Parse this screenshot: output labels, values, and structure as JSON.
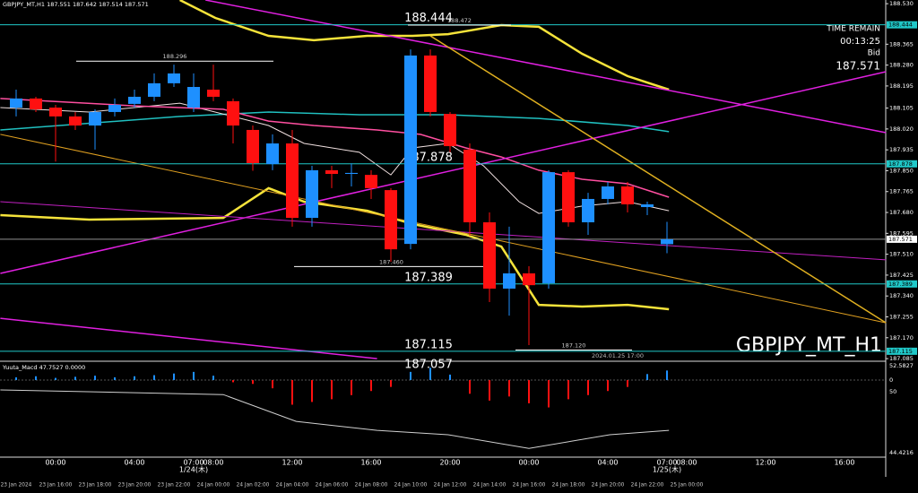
{
  "chart_data": {
    "type": "candlestick",
    "title": "GBPJPY_MT,H1 187.551 187.642 187.514 187.571",
    "watermark": "GBPJPY_MT_H1",
    "info": [
      "TIME REMAIN",
      "00:13:25",
      "Bid",
      "187.571"
    ],
    "footnote": "2024.01.25 17:00",
    "ylim": [
      187.078,
      188.545
    ],
    "yticks": [
      {
        "value": 188.53,
        "label": "188.530"
      },
      {
        "value": 188.365,
        "label": "188.365"
      },
      {
        "value": 188.28,
        "label": "188.280"
      },
      {
        "value": 188.195,
        "label": "188.195"
      },
      {
        "value": 188.105,
        "label": "188.105"
      },
      {
        "value": 188.02,
        "label": "188.020"
      },
      {
        "value": 187.935,
        "label": "187.935"
      },
      {
        "value": 187.85,
        "label": "187.850"
      },
      {
        "value": 187.765,
        "label": "187.765"
      },
      {
        "value": 187.68,
        "label": "187.680"
      },
      {
        "value": 187.595,
        "label": "187.595"
      },
      {
        "value": 187.51,
        "label": "187.510"
      },
      {
        "value": 187.425,
        "label": "187.425"
      },
      {
        "value": 187.34,
        "label": "187.340"
      },
      {
        "value": 187.255,
        "label": "187.255"
      },
      {
        "value": 187.17,
        "label": "187.170"
      },
      {
        "value": 187.085,
        "label": "187.085"
      }
    ],
    "up_color": "#1e90ff",
    "down_color": "#ff1010",
    "candles": {
      "open": [
        188.107,
        188.144,
        188.107,
        188.071,
        188.034,
        188.089,
        188.122,
        188.151,
        188.206,
        188.107,
        188.18,
        188.133,
        188.016,
        187.877,
        187.961,
        187.658,
        187.852,
        187.837,
        187.833,
        187.771,
        187.552,
        188.319,
        188.081,
        187.936,
        187.64,
        187.37,
        187.432,
        187.392,
        187.844,
        187.64,
        187.735,
        187.786,
        187.702,
        187.551
      ],
      "high": [
        188.18,
        188.151,
        188.118,
        188.089,
        188.1,
        188.144,
        188.18,
        188.246,
        188.282,
        188.246,
        188.282,
        188.144,
        188.034,
        187.998,
        188.016,
        187.87,
        187.87,
        187.88,
        187.852,
        187.779,
        188.344,
        188.344,
        188.089,
        187.961,
        187.68,
        187.622,
        187.461,
        187.852,
        187.852,
        187.76,
        187.804,
        187.804,
        187.724,
        187.642
      ],
      "low": [
        188.071,
        188.089,
        187.887,
        188.016,
        187.936,
        188.071,
        188.107,
        188.133,
        188.191,
        188.089,
        188.133,
        187.961,
        187.85,
        187.852,
        187.622,
        187.622,
        187.779,
        187.786,
        187.735,
        187.479,
        187.53,
        188.071,
        187.925,
        187.585,
        187.315,
        187.26,
        187.14,
        187.37,
        187.622,
        187.589,
        187.713,
        187.68,
        187.669,
        187.514
      ],
      "close": [
        188.144,
        188.1,
        188.071,
        188.034,
        188.089,
        188.118,
        188.151,
        188.206,
        188.246,
        188.191,
        188.151,
        188.034,
        187.881,
        187.961,
        187.658,
        187.852,
        187.837,
        187.841,
        187.779,
        187.53,
        188.319,
        188.089,
        187.95,
        187.64,
        187.37,
        187.432,
        187.384,
        187.844,
        187.64,
        187.735,
        187.786,
        187.713,
        187.713,
        187.571
      ]
    },
    "overlays": [
      {
        "color": "#f5e33a",
        "width": 2.5,
        "x": [
          8.3,
          10.1,
          12.8,
          15.1,
          17.8,
          20.1,
          21.9,
          24.6,
          26.5,
          28.7,
          31,
          33.1
        ],
        "values": [
          188.545,
          188.472,
          188.399,
          188.381,
          188.399,
          188.399,
          188.406,
          188.443,
          188.436,
          188.326,
          188.235,
          188.18
        ]
      },
      {
        "color": "#f5e33a",
        "width": 2.5,
        "x": [
          -0.8,
          3.7,
          10.5,
          12.8,
          14.6,
          17.8,
          20.1,
          22.8,
          24.6,
          26.5,
          28.7,
          31,
          33.1
        ],
        "values": [
          187.669,
          187.651,
          187.658,
          187.779,
          187.724,
          187.687,
          187.633,
          187.589,
          187.541,
          187.304,
          187.297,
          187.304,
          187.286
        ]
      },
      {
        "color": "#20c0c0",
        "width": 1.5,
        "x": [
          -0.8,
          8.3,
          12.8,
          17.4,
          21.9,
          26.5,
          31,
          33.1
        ],
        "values": [
          188.016,
          188.071,
          188.089,
          188.078,
          188.078,
          188.063,
          188.034,
          188.009
        ]
      },
      {
        "color": "#f0e0e0",
        "width": 1,
        "x": [
          -0.8,
          3.7,
          8.3,
          12.8,
          14.6,
          17.4,
          19,
          20.1,
          21.9,
          23.7,
          25.5,
          26.5,
          28.7,
          31,
          33.1
        ],
        "values": [
          188.107,
          188.089,
          188.125,
          188.034,
          187.961,
          187.925,
          187.833,
          187.943,
          187.961,
          187.87,
          187.724,
          187.676,
          187.706,
          187.724,
          187.687
        ]
      },
      {
        "color": "#ff4fa0",
        "width": 1.5,
        "x": [
          -0.8,
          6,
          10.5,
          12.8,
          15.1,
          18.3,
          20.5,
          22.8,
          24.6,
          26.5,
          28.7,
          31,
          33.1
        ],
        "values": [
          188.144,
          188.114,
          188.1,
          188.052,
          188.034,
          188.016,
          187.998,
          187.943,
          187.906,
          187.852,
          187.815,
          187.797,
          187.742
        ]
      },
      {
        "color": "#e020e0",
        "width": 1.5,
        "x": [
          9.6,
          44.1
        ],
        "values": [
          188.545,
          188.005
        ]
      },
      {
        "color": "#e020e0",
        "width": 1.5,
        "x": [
          -0.8,
          44.1
        ],
        "values": [
          187.432,
          188.253
        ]
      },
      {
        "color": "#e020e0",
        "width": 1.5,
        "x": [
          -0.8,
          18.3
        ],
        "values": [
          187.249,
          187.085
        ]
      },
      {
        "color": "#c020c0",
        "width": 1,
        "x": [
          -0.8,
          44.1
        ],
        "values": [
          187.724,
          187.487
        ]
      },
      {
        "color": "#e0b020",
        "width": 1.5,
        "x": [
          21,
          44.1
        ],
        "values": [
          188.399,
          187.231
        ]
      },
      {
        "color": "#e0a020",
        "width": 1,
        "x": [
          -0.8,
          44.1
        ],
        "values": [
          187.998,
          187.231
        ]
      }
    ],
    "price_lines": [
      188.444,
      187.878,
      187.571,
      187.389,
      187.115
    ],
    "price_line_colors": [
      "#20c8c8",
      "#20c8c8",
      "#909090",
      "#20c8c8",
      "#20c8c8"
    ],
    "levels": [
      {
        "value": 188.444,
        "label": "188.444"
      },
      {
        "value": 187.878,
        "label": "187.878"
      },
      {
        "value": 187.389,
        "label": "187.389"
      },
      {
        "value": 187.115,
        "label": "187.115"
      },
      {
        "value": 187.057,
        "label": "187.057"
      }
    ],
    "marks": [
      {
        "value": 188.472,
        "label": "188.472"
      },
      {
        "value": 188.296,
        "label": "188.296"
      },
      {
        "value": 187.46,
        "label": "187.460"
      },
      {
        "value": 187.12,
        "label": "187.120"
      }
    ],
    "time_axis": {
      "hours": [
        null,
        null,
        "00:00",
        null,
        null,
        null,
        "04:00",
        null,
        null,
        "07:00",
        "08:00",
        null,
        null,
        null,
        "12:00",
        null,
        null,
        null,
        "16:00",
        null,
        null,
        null,
        "20:00",
        null,
        null,
        null,
        "00:00",
        null,
        null,
        null,
        "04:00",
        null,
        null,
        "07:00",
        "08:00",
        null,
        null,
        null,
        "12:00",
        null,
        null,
        null,
        "16:00",
        null
      ],
      "dates": [
        null,
        null,
        null,
        null,
        null,
        null,
        null,
        null,
        null,
        "1/24(木)",
        null,
        null,
        null,
        null,
        null,
        null,
        null,
        null,
        null,
        null,
        null,
        null,
        null,
        null,
        null,
        null,
        null,
        null,
        null,
        null,
        null,
        null,
        null,
        "1/25(木)",
        null,
        null,
        null,
        null,
        null,
        null,
        null,
        null,
        null,
        null
      ],
      "scale": [
        "23 Jan 2024",
        "23 Jan 16:00",
        "23 Jan 18:00",
        "23 Jan 20:00",
        "23 Jan 22:00",
        "24 Jan 00:00",
        "24 Jan 02:00",
        "24 Jan 04:00",
        "24 Jan 06:00",
        "24 Jan 08:00",
        "24 Jan 10:00",
        "24 Jan 12:00",
        "24 Jan 14:00",
        "24 Jan 16:00",
        "24 Jan 18:00",
        "24 Jan 20:00",
        "24 Jan 22:00",
        "25 Jan 00:00"
      ]
    },
    "macd": {
      "title": "Yuuta_Macd 47.7527 0.0000",
      "ylim": [
        -282,
        62.4
      ],
      "axis_texts": [
        "52.5827",
        "0",
        "50",
        "44.4216"
      ],
      "histogram": [
        10,
        14,
        8,
        12,
        16,
        10,
        14,
        18,
        24,
        30,
        16,
        -8,
        -14,
        -30,
        -90,
        -80,
        -70,
        -55,
        -40,
        -25,
        30,
        45,
        20,
        -50,
        -75,
        -60,
        -85,
        -100,
        -70,
        -55,
        -40,
        -25,
        22,
        35
      ],
      "signal": {
        "color": "#d0d0d0",
        "x": [
          -0.8,
          10.5,
          14.2,
          18.3,
          21.9,
          26,
          30.1,
          33.1
        ],
        "values": [
          -36,
          -53,
          -151,
          -184,
          -200,
          -250,
          -200,
          -184
        ]
      }
    }
  }
}
